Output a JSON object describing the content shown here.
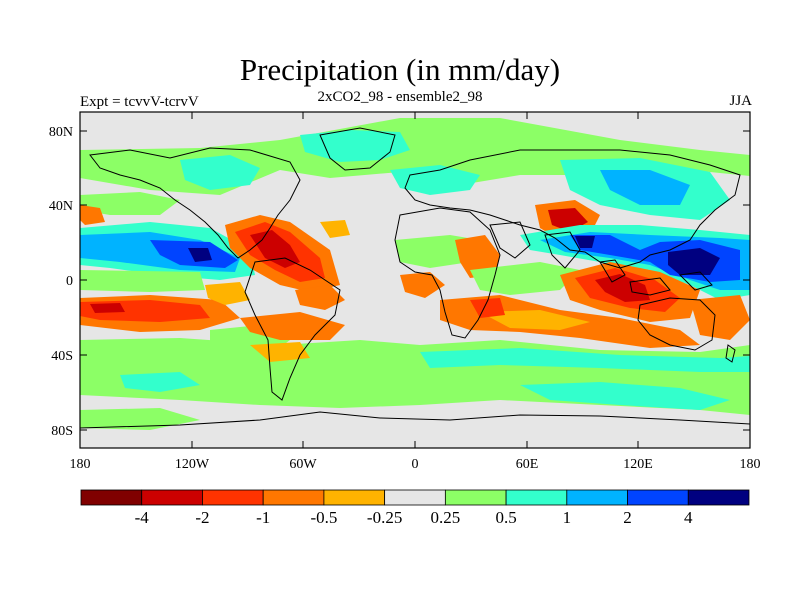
{
  "map": {
    "title": "Precipitation (in mm/day)",
    "subtitle": "2xCO2_98 - ensemble2_98",
    "left_label": "Expt = tcvvV-tcrvV",
    "right_label": "JJA",
    "lon_ticks": [
      "180",
      "120W",
      "60W",
      "0",
      "60E",
      "120E",
      "180"
    ],
    "lat_ticks": [
      "80N",
      "40N",
      "0",
      "40S",
      "80S"
    ],
    "background_color": "#e6e6e6"
  },
  "colorbar": {
    "colors": [
      "#800000",
      "#cc0000",
      "#ff3300",
      "#ff7700",
      "#ffb300",
      "#e6e6e6",
      "#8cff66",
      "#33ffcc",
      "#00b3ff",
      "#0044ff",
      "#000080"
    ],
    "labels": [
      "-4",
      "-2",
      "-1",
      "-0.5",
      "-0.25",
      "0.25",
      "0.5",
      "1",
      "2",
      "4"
    ]
  }
}
